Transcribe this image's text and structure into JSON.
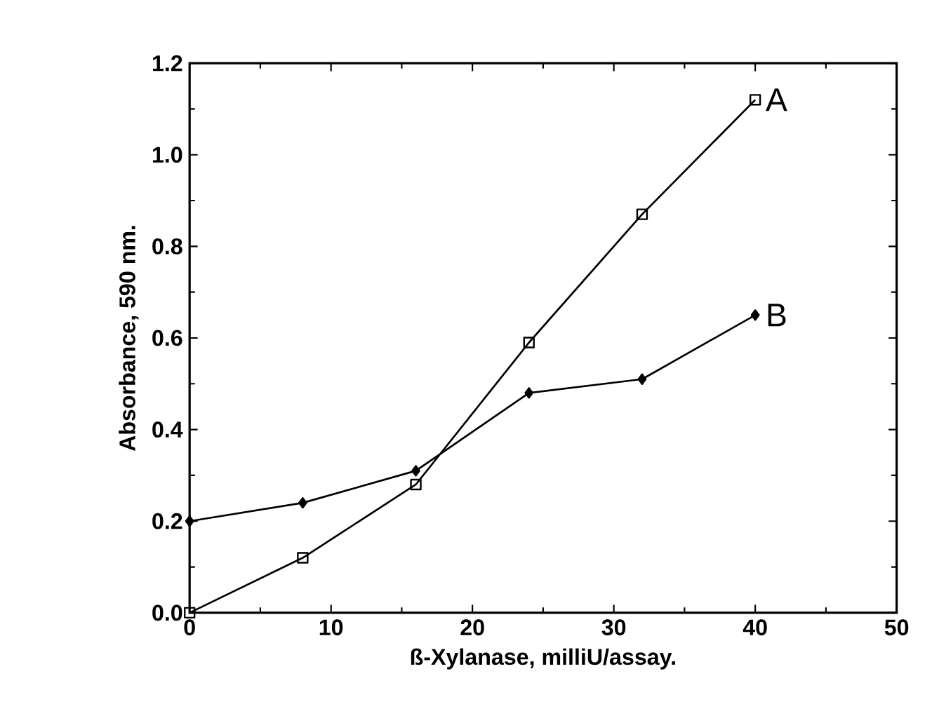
{
  "chart_data": {
    "type": "line",
    "xlabel": "ß-Xylanase, milliU/assay.",
    "ylabel": "Absorbance,  590 nm.",
    "x": [
      0,
      8,
      16,
      24,
      32,
      40
    ],
    "series": [
      {
        "name": "A",
        "color": "#000000",
        "marker": "square",
        "values": [
          0.0,
          0.12,
          0.28,
          0.59,
          0.87,
          1.12
        ]
      },
      {
        "name": "B",
        "color": "#000000",
        "marker": "diamond",
        "values": [
          0.2,
          0.24,
          0.31,
          0.48,
          0.51,
          0.65
        ]
      }
    ],
    "xlim": [
      0,
      50
    ],
    "xticks": [
      0,
      10,
      20,
      30,
      40,
      50
    ],
    "ylim": [
      0,
      1.2
    ],
    "yticks": [
      {
        "value": 0,
        "label": "0.0"
      },
      0.2,
      0.4,
      0.6,
      0.8,
      {
        "value": 1.0,
        "label": "1.0"
      },
      1.2
    ],
    "grid": false,
    "legend": "right",
    "line_style": "solid"
  }
}
